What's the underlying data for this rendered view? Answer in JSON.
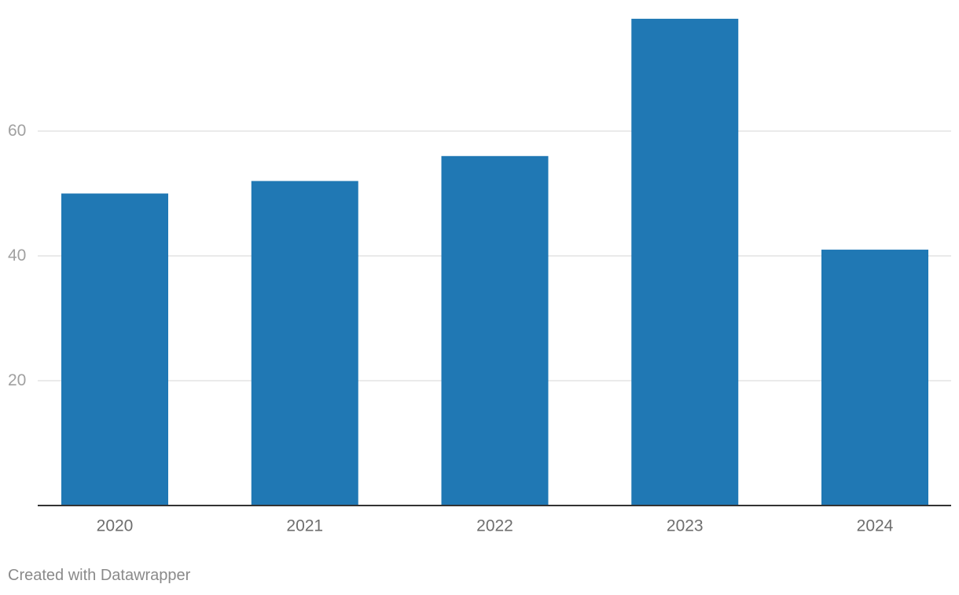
{
  "chart_data": {
    "type": "bar",
    "title": "",
    "xlabel": "",
    "ylabel": "",
    "categories": [
      "2020",
      "2021",
      "2022",
      "2023",
      "2024"
    ],
    "values": [
      50,
      52,
      56,
      78,
      41
    ],
    "ylim": [
      0,
      80
    ],
    "yticks": [
      20,
      40,
      60
    ],
    "grid": true,
    "bar_color": "#2078b4"
  },
  "footer": {
    "credit": "Created with Datawrapper"
  }
}
